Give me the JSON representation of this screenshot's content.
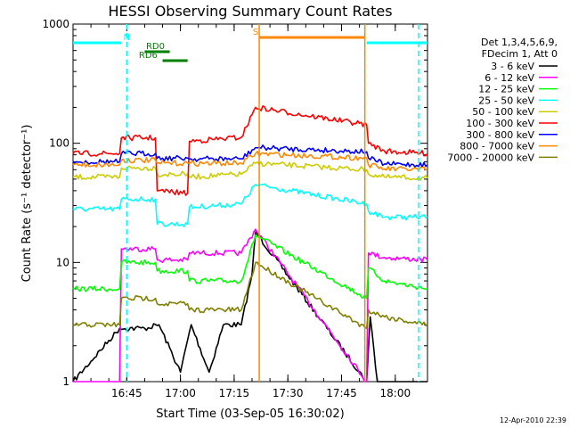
{
  "chart_data": {
    "type": "line",
    "title": "HESSI Observing Summary Count Rates",
    "xlabel": "Start Time (03-Sep-05 16:30:02)",
    "ylabel": "Count Rate (s⁻¹ detector⁻¹)",
    "x_range": [
      "16:30",
      "18:09"
    ],
    "x_tick_labels": [
      "16:45",
      "17:00",
      "17:15",
      "17:30",
      "17:45",
      "18:00"
    ],
    "y_scale": "log",
    "ylim": [
      1,
      1000
    ],
    "y_tick_labels": [
      "1",
      "10",
      "100",
      "1000"
    ],
    "grid": false,
    "legend": {
      "placement": "right",
      "header": [
        "Det 1,3,4,5,6,9,",
        "FDecim 1, Att 0"
      ]
    },
    "footer": "12-Apr-2010 22:39",
    "series": [
      {
        "name": "3 - 6 keV",
        "color": "#000000",
        "points": [
          [
            "16:30",
            1
          ],
          [
            "16:43",
            2.8
          ],
          [
            "16:50",
            2.8
          ],
          [
            "16:54",
            3
          ],
          [
            "17:00",
            1.2
          ],
          [
            "17:03",
            3
          ],
          [
            "17:08",
            1.2
          ],
          [
            "17:12",
            3
          ],
          [
            "17:17",
            3
          ],
          [
            "17:20",
            8
          ],
          [
            "17:21",
            18
          ],
          [
            "17:52",
            1
          ],
          [
            "17:53",
            3.5
          ],
          [
            "17:55",
            1
          ],
          [
            "18:09",
            1
          ]
        ]
      },
      {
        "name": "6 - 12 keV",
        "color": "#ff00ff",
        "points": [
          [
            "16:30",
            1
          ],
          [
            "16:43",
            1
          ],
          [
            "16:43.5",
            13
          ],
          [
            "16:53",
            13
          ],
          [
            "16:53.5",
            10.5
          ],
          [
            "17:02",
            10.5
          ],
          [
            "17:02.5",
            12
          ],
          [
            "17:17",
            12
          ],
          [
            "17:21",
            19
          ],
          [
            "17:52",
            1
          ],
          [
            "17:52.5",
            12
          ],
          [
            "17:57",
            11
          ],
          [
            "18:09",
            10.5
          ]
        ]
      },
      {
        "name": "12 - 25 keV",
        "color": "#00ff00",
        "points": [
          [
            "16:30",
            6
          ],
          [
            "16:43",
            6
          ],
          [
            "16:43.5",
            10
          ],
          [
            "16:53",
            10
          ],
          [
            "16:53.5",
            8.5
          ],
          [
            "17:02",
            8.5
          ],
          [
            "17:02.5",
            7
          ],
          [
            "17:17",
            7
          ],
          [
            "17:21",
            17
          ],
          [
            "17:52",
            5
          ],
          [
            "17:52.5",
            9
          ],
          [
            "17:57",
            7
          ],
          [
            "18:09",
            6
          ]
        ]
      },
      {
        "name": "25 - 50 keV",
        "color": "#00ffff",
        "points": [
          [
            "16:30",
            28
          ],
          [
            "16:43",
            28
          ],
          [
            "16:43.5",
            34
          ],
          [
            "16:53",
            34
          ],
          [
            "16:53.5",
            21
          ],
          [
            "17:02",
            21
          ],
          [
            "17:02.5",
            29
          ],
          [
            "17:17",
            31
          ],
          [
            "17:21",
            45
          ],
          [
            "17:52",
            31
          ],
          [
            "17:52.5",
            27
          ],
          [
            "17:57",
            24
          ],
          [
            "18:09",
            24
          ]
        ]
      },
      {
        "name": "50 - 100 keV",
        "color": "#cccc00",
        "points": [
          [
            "16:30",
            52
          ],
          [
            "16:43",
            52
          ],
          [
            "16:43.5",
            62
          ],
          [
            "16:53",
            62
          ],
          [
            "16:53.5",
            55
          ],
          [
            "17:02",
            55
          ],
          [
            "17:02.5",
            52
          ],
          [
            "17:17",
            55
          ],
          [
            "17:21",
            68
          ],
          [
            "17:52",
            60
          ],
          [
            "17:52.5",
            55
          ],
          [
            "17:57",
            52
          ],
          [
            "18:09",
            51
          ]
        ]
      },
      {
        "name": "100 - 300 keV",
        "color": "#ff0000",
        "points": [
          [
            "16:30",
            82
          ],
          [
            "16:43",
            82
          ],
          [
            "16:43.5",
            111
          ],
          [
            "16:53",
            111
          ],
          [
            "16:53.5",
            40
          ],
          [
            "17:02",
            38
          ],
          [
            "17:02.5",
            104
          ],
          [
            "17:17",
            112
          ],
          [
            "17:21",
            200
          ],
          [
            "17:52",
            143
          ],
          [
            "17:52.5",
            100
          ],
          [
            "17:57",
            86
          ],
          [
            "18:09",
            82
          ]
        ]
      },
      {
        "name": "300 - 800 keV",
        "color": "#0000ff",
        "points": [
          [
            "16:30",
            70
          ],
          [
            "16:43",
            70
          ],
          [
            "16:43.5",
            82
          ],
          [
            "16:53",
            82
          ],
          [
            "16:53.5",
            75
          ],
          [
            "17:02",
            75
          ],
          [
            "17:02.5",
            74
          ],
          [
            "17:17",
            74
          ],
          [
            "17:21",
            92
          ],
          [
            "17:52",
            85
          ],
          [
            "17:52.5",
            75
          ],
          [
            "17:57",
            67
          ],
          [
            "18:09",
            66
          ]
        ]
      },
      {
        "name": "800 - 7000 keV",
        "color": "#ff8800",
        "points": [
          [
            "16:30",
            66
          ],
          [
            "16:43",
            66
          ],
          [
            "16:43.5",
            72
          ],
          [
            "16:53",
            72
          ],
          [
            "16:53.5",
            68
          ],
          [
            "17:02",
            68
          ],
          [
            "17:02.5",
            68
          ],
          [
            "17:17",
            68
          ],
          [
            "17:21",
            82
          ],
          [
            "17:52",
            75
          ],
          [
            "17:52.5",
            66
          ],
          [
            "17:57",
            61
          ],
          [
            "18:09",
            60
          ]
        ]
      },
      {
        "name": "7000 - 20000 keV",
        "color": "#808000",
        "points": [
          [
            "16:30",
            3
          ],
          [
            "16:43",
            3
          ],
          [
            "16:43.5",
            5
          ],
          [
            "16:53",
            5
          ],
          [
            "16:53.5",
            4.5
          ],
          [
            "17:02",
            4.5
          ],
          [
            "17:02.5",
            4
          ],
          [
            "17:17",
            4
          ],
          [
            "17:21",
            10
          ],
          [
            "17:52",
            2.8
          ],
          [
            "17:52.5",
            4
          ],
          [
            "17:57",
            3.5
          ],
          [
            "18:09",
            3
          ]
        ]
      }
    ],
    "annotations": [
      {
        "label": "N",
        "color": "#00ffff",
        "segments": [
          [
            "16:30",
            "16:43.5"
          ],
          [
            "17:52",
            "18:09"
          ]
        ],
        "label_at": "16:45"
      },
      {
        "label": "RD0",
        "color": "#008000",
        "segments": [
          [
            "16:50",
            "16:57"
          ]
        ],
        "label_at": "16:53"
      },
      {
        "label": "RD6",
        "color": "#008000",
        "segments": [
          [
            "16:55",
            "17:02"
          ]
        ],
        "label_at": "16:51"
      },
      {
        "label": "S",
        "color": "#ff8800",
        "segments": [
          [
            "17:22",
            "17:51.5"
          ]
        ],
        "label_at": "17:21"
      }
    ],
    "vertical_markers": [
      {
        "color": "#00ffff",
        "style": "dashed",
        "x": "16:45"
      },
      {
        "color": "#00ffff",
        "style": "dashed",
        "x": "17:51.5"
      },
      {
        "color": "#00ffff",
        "style": "dashed",
        "x": "18:06.5"
      },
      {
        "color": "#ff8800",
        "style": "solid",
        "x": "17:22"
      },
      {
        "color": "#ff8800",
        "style": "solid",
        "x": "17:51.5"
      }
    ]
  }
}
